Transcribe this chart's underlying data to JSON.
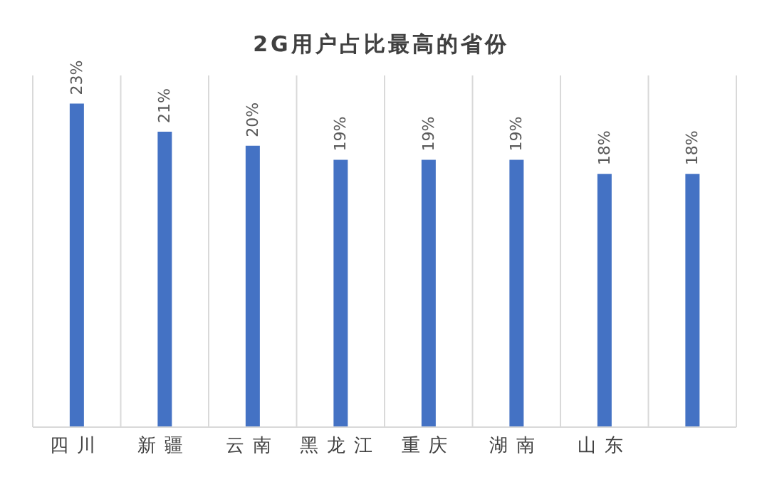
{
  "chart_data": {
    "type": "bar",
    "title": "2G用户占比最高的省份",
    "categories": [
      "四川",
      "新疆",
      "云南",
      "黑龙江",
      "重庆",
      "湖南",
      "山东",
      null
    ],
    "values": [
      23,
      21,
      20,
      19,
      19,
      19,
      18,
      18
    ],
    "value_labels": [
      "23%",
      "21%",
      "20%",
      "19%",
      "19%",
      "19%",
      "18%",
      "18%"
    ],
    "color": "#4472c4",
    "ylim": [
      0,
      25
    ],
    "grid": "x",
    "tick_labels": "x"
  }
}
